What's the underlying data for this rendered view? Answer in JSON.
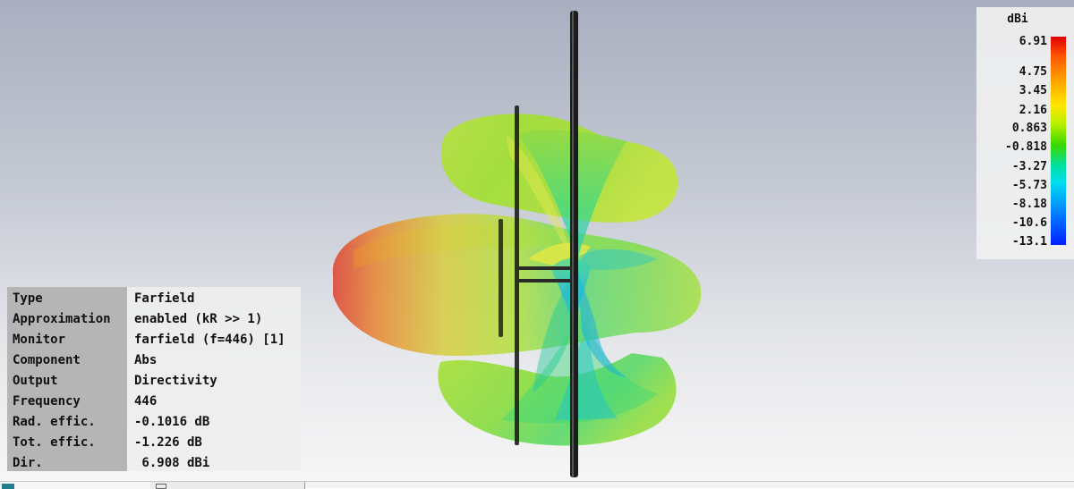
{
  "info": {
    "rows": [
      {
        "label": "Type",
        "value": "Farfield"
      },
      {
        "label": "Approximation",
        "value": "enabled (kR >> 1)"
      },
      {
        "label": "Monitor",
        "value": "farfield (f=446) [1]"
      },
      {
        "label": "Component",
        "value": "Abs"
      },
      {
        "label": "Output",
        "value": "Directivity"
      },
      {
        "label": "Frequency",
        "value": "446"
      },
      {
        "label": "Rad. effic.",
        "value": "-0.1016 dB"
      },
      {
        "label": "Tot. effic.",
        "value": "-1.226 dB"
      },
      {
        "label": "Dir.",
        "value": " 6.908 dBi"
      }
    ]
  },
  "legend": {
    "unit": "dBi",
    "ticks": [
      "6.91",
      "4.75",
      "3.45",
      "2.16",
      "0.863",
      "-0.818",
      "-3.27",
      "-5.73",
      "-8.18",
      "-10.6",
      "-13.1"
    ]
  },
  "colors": {
    "max": "#e10000",
    "mid": "#3ad800",
    "min": "#0020ff"
  }
}
